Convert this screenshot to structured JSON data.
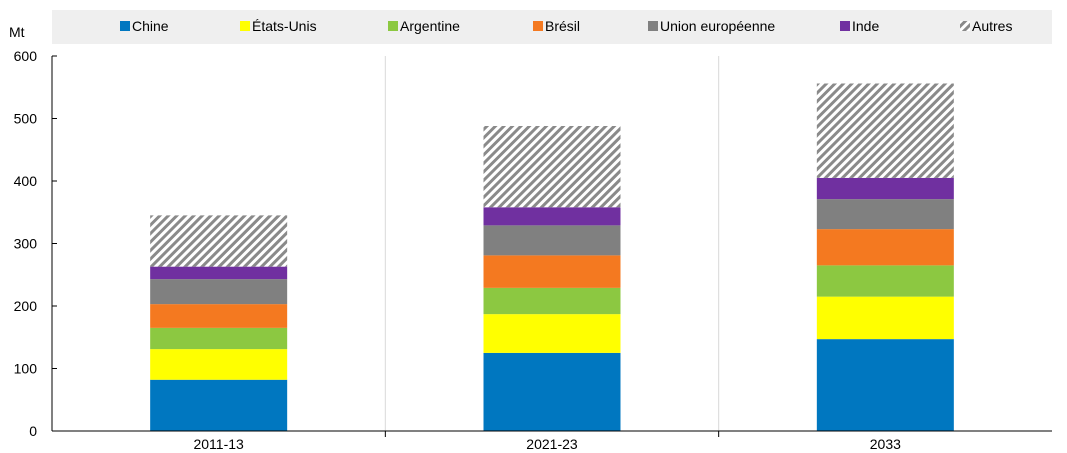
{
  "chart_data": {
    "type": "bar",
    "stacked": true,
    "ylabel": "Mt",
    "ylim": [
      0,
      600
    ],
    "yticks": [
      0,
      100,
      200,
      300,
      400,
      500,
      600
    ],
    "grid": "vertical",
    "legend_position": "top",
    "categories": [
      "2011-13",
      "2021-23",
      "2033"
    ],
    "series": [
      {
        "name": "Chine",
        "color": "#0077C0",
        "values": [
          82,
          125,
          147
        ]
      },
      {
        "name": "États-Unis",
        "color": "#FFFF00",
        "values": [
          49,
          62,
          68
        ]
      },
      {
        "name": "Argentine",
        "color": "#8CC841",
        "values": [
          34,
          42,
          50
        ]
      },
      {
        "name": "Brésil",
        "color": "#F47920",
        "values": [
          38,
          52,
          58
        ]
      },
      {
        "name": "Union européenne",
        "color": "#808080",
        "values": [
          40,
          48,
          48
        ]
      },
      {
        "name": "Inde",
        "color": "#7030A0",
        "values": [
          20,
          29,
          34
        ]
      },
      {
        "name": "Autres",
        "color": "hatch",
        "values": [
          82,
          130,
          151
        ]
      }
    ]
  }
}
